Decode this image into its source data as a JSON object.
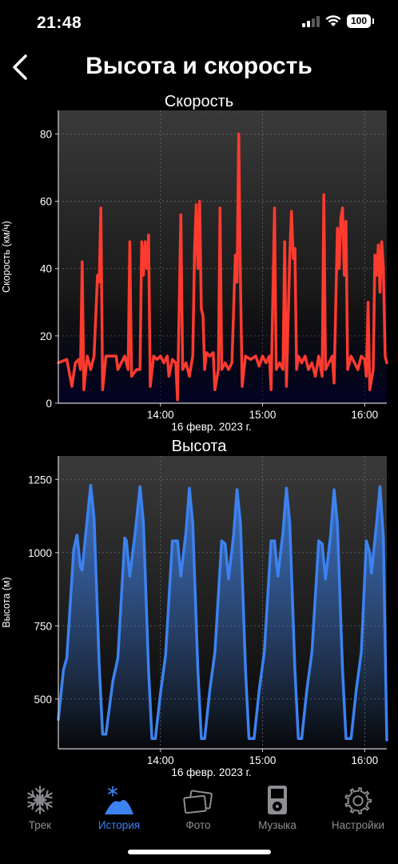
{
  "status": {
    "time": "21:48",
    "battery": "100"
  },
  "header": {
    "title": "Высота и скорость"
  },
  "charts": [
    {
      "type": "line",
      "title": "Скорость",
      "ylabel": "Скорость (км/ч)",
      "xlabel": "16 февр. 2023 г.",
      "ylim": [
        0,
        87
      ],
      "yticks": [
        0,
        20,
        40,
        60,
        80
      ],
      "xlim": [
        "13:00",
        "16:13"
      ],
      "xticks": [
        "14:00",
        "15:00",
        "16:00"
      ],
      "color": "#ff3b30",
      "grid": true,
      "points": [
        [
          "13:00",
          12
        ],
        [
          "13:05",
          13
        ],
        [
          "13:08",
          5
        ],
        [
          "13:10",
          12
        ],
        [
          "13:12",
          13
        ],
        [
          "13:13",
          10
        ],
        [
          "13:14",
          42
        ],
        [
          "13:15",
          4
        ],
        [
          "13:17",
          14
        ],
        [
          "13:19",
          10
        ],
        [
          "13:21",
          14
        ],
        [
          "13:23",
          38
        ],
        [
          "13:24",
          36
        ],
        [
          "13:25",
          58
        ],
        [
          "13:26",
          4
        ],
        [
          "13:28",
          14
        ],
        [
          "13:31",
          14
        ],
        [
          "13:34",
          14
        ],
        [
          "13:35",
          10
        ],
        [
          "13:37",
          12
        ],
        [
          "13:39",
          14
        ],
        [
          "13:41",
          10
        ],
        [
          "13:42",
          48
        ],
        [
          "13:43",
          8
        ],
        [
          "13:46",
          10
        ],
        [
          "13:48",
          10
        ],
        [
          "13:49",
          48
        ],
        [
          "13:50",
          38
        ],
        [
          "13:51",
          48
        ],
        [
          "13:52",
          40
        ],
        [
          "13:53",
          50
        ],
        [
          "13:54",
          5
        ],
        [
          "13:56",
          14
        ],
        [
          "13:58",
          13
        ],
        [
          "14:00",
          14
        ],
        [
          "14:02",
          12
        ],
        [
          "14:04",
          14
        ],
        [
          "14:05",
          8
        ],
        [
          "14:07",
          13
        ],
        [
          "14:09",
          12
        ],
        [
          "14:10",
          1
        ],
        [
          "14:12",
          56
        ],
        [
          "14:13",
          10
        ],
        [
          "14:15",
          12
        ],
        [
          "14:17",
          8
        ],
        [
          "14:19",
          14
        ],
        [
          "14:20",
          45
        ],
        [
          "14:21",
          59
        ],
        [
          "14:22",
          40
        ],
        [
          "14:23",
          60
        ],
        [
          "14:24",
          28
        ],
        [
          "14:25",
          26
        ],
        [
          "14:26",
          10
        ],
        [
          "14:27",
          15
        ],
        [
          "14:29",
          14
        ],
        [
          "14:31",
          15
        ],
        [
          "14:32",
          4
        ],
        [
          "14:34",
          10
        ],
        [
          "14:35",
          58
        ],
        [
          "14:36",
          10
        ],
        [
          "14:38",
          12
        ],
        [
          "14:40",
          10
        ],
        [
          "14:42",
          12
        ],
        [
          "14:44",
          44
        ],
        [
          "14:45",
          36
        ],
        [
          "14:46",
          80
        ],
        [
          "14:47",
          36
        ],
        [
          "14:48",
          5
        ],
        [
          "14:50",
          14
        ],
        [
          "14:53",
          13
        ],
        [
          "14:56",
          14
        ],
        [
          "14:58",
          11
        ],
        [
          "15:00",
          14
        ],
        [
          "15:02",
          12
        ],
        [
          "15:04",
          14
        ],
        [
          "15:05",
          4
        ],
        [
          "15:07",
          58
        ],
        [
          "15:08",
          10
        ],
        [
          "15:10",
          12
        ],
        [
          "15:12",
          10
        ],
        [
          "15:13",
          48
        ],
        [
          "15:14",
          5
        ],
        [
          "15:16",
          44
        ],
        [
          "15:17",
          57
        ],
        [
          "15:18",
          43
        ],
        [
          "15:19",
          46
        ],
        [
          "15:20",
          10
        ],
        [
          "15:21",
          14
        ],
        [
          "15:23",
          12
        ],
        [
          "15:25",
          14
        ],
        [
          "15:27",
          10
        ],
        [
          "15:29",
          12
        ],
        [
          "15:31",
          8
        ],
        [
          "15:33",
          14
        ],
        [
          "15:35",
          8
        ],
        [
          "15:36",
          62
        ],
        [
          "15:37",
          10
        ],
        [
          "15:39",
          12
        ],
        [
          "15:41",
          14
        ],
        [
          "15:42",
          6
        ],
        [
          "15:44",
          52
        ],
        [
          "15:45",
          40
        ],
        [
          "15:46",
          55
        ],
        [
          "15:47",
          58
        ],
        [
          "15:48",
          38
        ],
        [
          "15:49",
          54
        ],
        [
          "15:50",
          10
        ],
        [
          "15:52",
          14
        ],
        [
          "15:54",
          12
        ],
        [
          "15:56",
          10
        ],
        [
          "15:58",
          14
        ],
        [
          "16:00",
          13
        ],
        [
          "16:01",
          8
        ],
        [
          "16:02",
          30
        ],
        [
          "16:03",
          4
        ],
        [
          "16:05",
          10
        ],
        [
          "16:06",
          44
        ],
        [
          "16:07",
          38
        ],
        [
          "16:08",
          47
        ],
        [
          "16:09",
          33
        ],
        [
          "16:10",
          48
        ],
        [
          "16:11",
          40
        ],
        [
          "16:12",
          14
        ],
        [
          "16:13",
          12
        ]
      ]
    },
    {
      "type": "area",
      "title": "Высота",
      "ylabel": "Высота (м)",
      "xlabel": "16 февр. 2023 г.",
      "ylim": [
        330,
        1330
      ],
      "yticks": [
        500,
        750,
        1000,
        1250
      ],
      "xlim": [
        "13:00",
        "16:13"
      ],
      "xticks": [
        "14:00",
        "15:00",
        "16:00"
      ],
      "color": "#3c82f0",
      "grid": true,
      "points": [
        [
          "13:00",
          430
        ],
        [
          "13:03",
          600
        ],
        [
          "13:05",
          640
        ],
        [
          "13:09",
          1010
        ],
        [
          "13:11",
          1060
        ],
        [
          "13:13",
          950
        ],
        [
          "13:14",
          940
        ],
        [
          "13:16",
          1060
        ],
        [
          "13:19",
          1230
        ],
        [
          "13:21",
          1120
        ],
        [
          "13:24",
          620
        ],
        [
          "13:26",
          380
        ],
        [
          "13:28",
          380
        ],
        [
          "13:32",
          560
        ],
        [
          "13:35",
          640
        ],
        [
          "13:39",
          1050
        ],
        [
          "13:40",
          1040
        ],
        [
          "13:42",
          920
        ],
        [
          "13:45",
          1060
        ],
        [
          "13:48",
          1225
        ],
        [
          "13:50",
          1100
        ],
        [
          "13:53",
          600
        ],
        [
          "13:55",
          365
        ],
        [
          "13:57",
          365
        ],
        [
          "14:00",
          520
        ],
        [
          "14:03",
          650
        ],
        [
          "14:07",
          1040
        ],
        [
          "14:10",
          1040
        ],
        [
          "14:12",
          920
        ],
        [
          "14:15",
          1070
        ],
        [
          "14:17",
          1220
        ],
        [
          "14:19",
          1100
        ],
        [
          "14:22",
          600
        ],
        [
          "14:24",
          365
        ],
        [
          "14:26",
          365
        ],
        [
          "14:29",
          530
        ],
        [
          "14:32",
          660
        ],
        [
          "14:36",
          1040
        ],
        [
          "14:38",
          1030
        ],
        [
          "14:40",
          910
        ],
        [
          "14:43",
          1060
        ],
        [
          "14:45",
          1215
        ],
        [
          "14:47",
          1100
        ],
        [
          "14:50",
          600
        ],
        [
          "14:52",
          365
        ],
        [
          "14:55",
          365
        ],
        [
          "14:58",
          530
        ],
        [
          "15:01",
          660
        ],
        [
          "15:05",
          1040
        ],
        [
          "15:07",
          1040
        ],
        [
          "15:09",
          920
        ],
        [
          "15:12",
          1070
        ],
        [
          "15:14",
          1220
        ],
        [
          "15:16",
          1100
        ],
        [
          "15:19",
          600
        ],
        [
          "15:21",
          365
        ],
        [
          "15:23",
          365
        ],
        [
          "15:26",
          530
        ],
        [
          "15:29",
          660
        ],
        [
          "15:33",
          1040
        ],
        [
          "15:35",
          1030
        ],
        [
          "15:37",
          910
        ],
        [
          "15:40",
          1060
        ],
        [
          "15:42",
          1215
        ],
        [
          "15:44",
          1100
        ],
        [
          "15:47",
          600
        ],
        [
          "15:49",
          365
        ],
        [
          "15:52",
          365
        ],
        [
          "15:55",
          530
        ],
        [
          "15:58",
          660
        ],
        [
          "16:01",
          1040
        ],
        [
          "16:03",
          1000
        ],
        [
          "16:04",
          930
        ],
        [
          "16:07",
          1100
        ],
        [
          "16:09",
          1225
        ],
        [
          "16:11",
          1050
        ],
        [
          "16:13",
          360
        ]
      ]
    }
  ],
  "tabs": [
    {
      "label": "Трек",
      "icon": "snowflake-icon",
      "active": false
    },
    {
      "label": "История",
      "icon": "mountain-snow-icon",
      "active": true
    },
    {
      "label": "Фото",
      "icon": "photos-icon",
      "active": false
    },
    {
      "label": "Музыка",
      "icon": "music-player-icon",
      "active": false
    },
    {
      "label": "Настройки",
      "icon": "gear-icon",
      "active": false
    }
  ]
}
